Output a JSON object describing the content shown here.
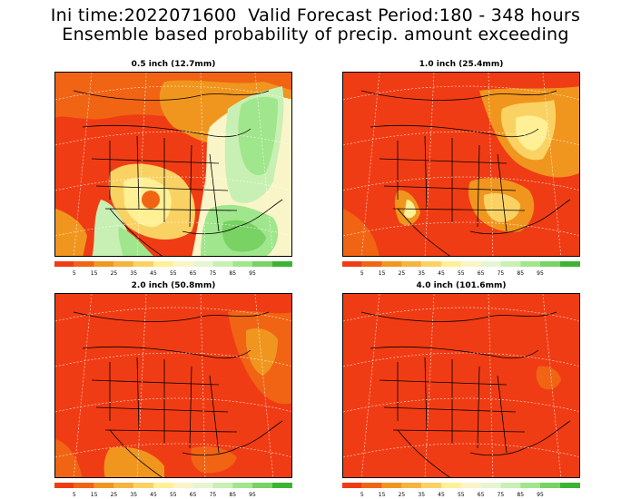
{
  "header": {
    "line1": "Ini time:2022071600  Valid Forecast Period:180 - 348 hours",
    "line2": "Ensemble based probability of precip. amount exceeding"
  },
  "panels": [
    {
      "title": "0.5 inch (12.7mm)",
      "coverage": "mixed"
    },
    {
      "title": "1.0 inch (25.4mm)",
      "coverage": "mostly-low"
    },
    {
      "title": "2.0 inch (50.8mm)",
      "coverage": "low"
    },
    {
      "title": "4.0 inch (101.6mm)",
      "coverage": "very-low"
    }
  ],
  "colorbar": {
    "labels": [
      "5",
      "15",
      "25",
      "35",
      "45",
      "55",
      "65",
      "75",
      "85",
      "95"
    ],
    "colors": [
      "#f03c14",
      "#f06414",
      "#f0961e",
      "#f5b43c",
      "#fad264",
      "#fff096",
      "#faf5c8",
      "#e6f5d2",
      "#c8f0b4",
      "#a0e68c",
      "#78d264",
      "#3cb432"
    ]
  }
}
